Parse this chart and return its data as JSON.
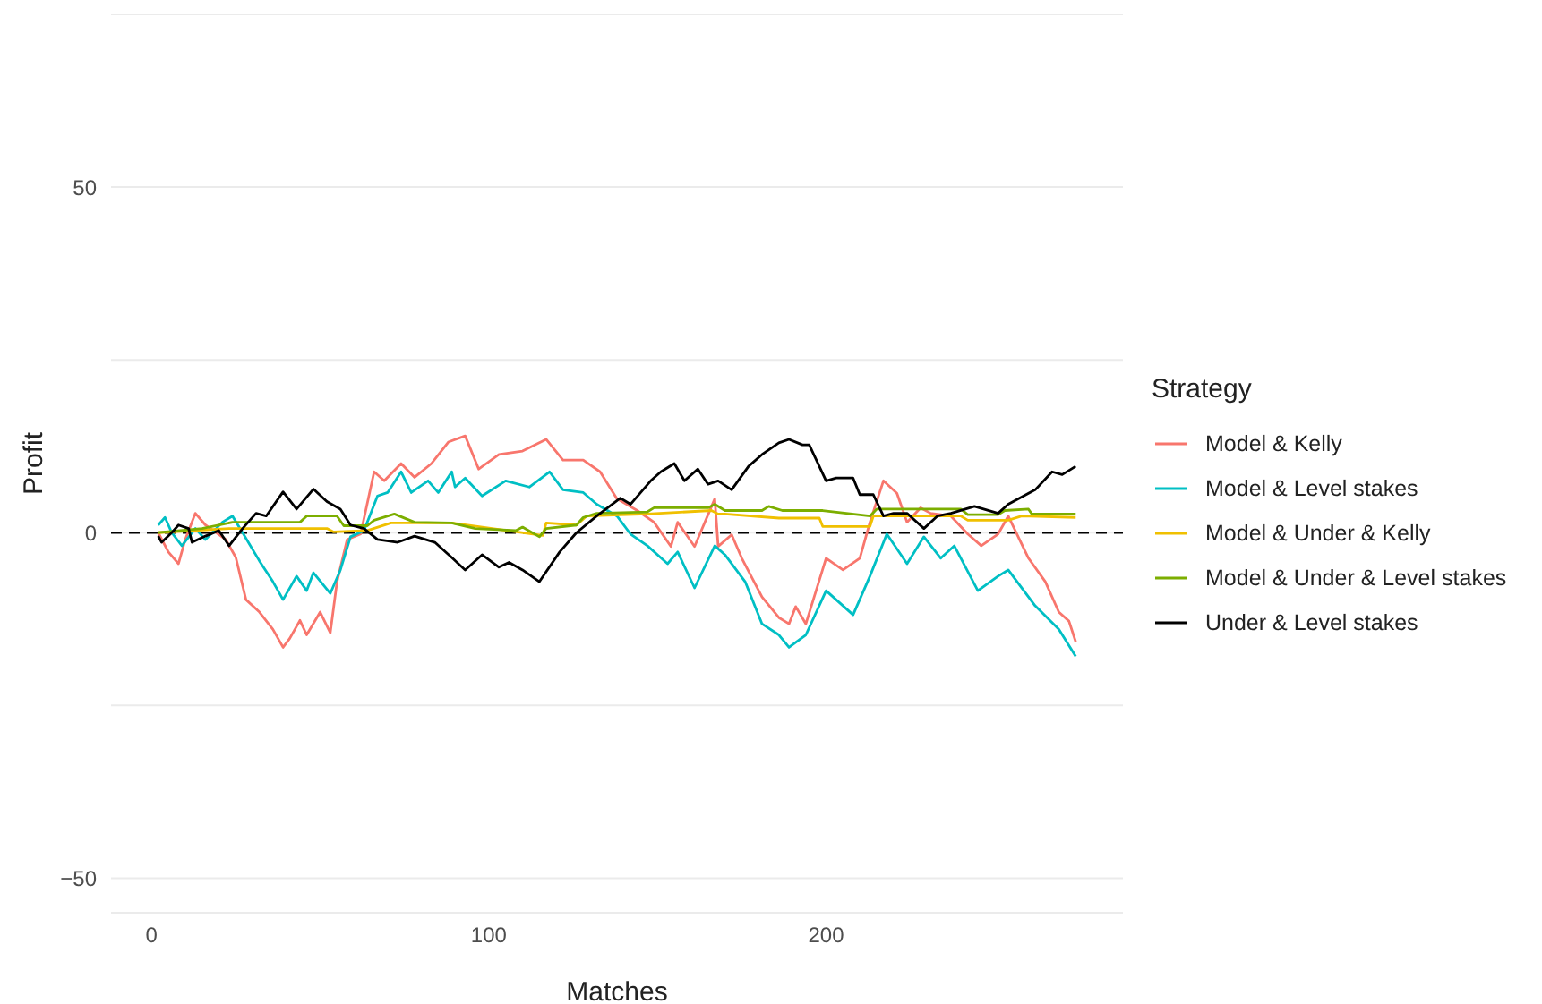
{
  "chart_data": {
    "type": "line",
    "xlabel": "Matches",
    "ylabel": "Profit",
    "legend_title": "Strategy",
    "legend": "right",
    "grid": "y",
    "line_style": "solid",
    "marker": "none",
    "xlim": [
      -12,
      288
    ],
    "xticks": [
      0,
      100,
      200
    ],
    "ylim": [
      -55,
      75
    ],
    "yticks": [
      {
        "value": -50,
        "label": "−50"
      },
      {
        "value": -25,
        "label": null
      },
      0,
      {
        "value": 25,
        "label": null
      },
      50,
      {
        "value": 75,
        "label": null
      }
    ],
    "ref_lines": [
      {
        "axis": "y",
        "value": 0,
        "label": null,
        "color": "#000000",
        "line_style": "dashed"
      }
    ],
    "series": [
      {
        "name": "Model & Kelly",
        "color": "#f8766d",
        "x": [
          2,
          5,
          8,
          10,
          13,
          16,
          22,
          25,
          28,
          32,
          36,
          39,
          41,
          44,
          46,
          50,
          53,
          55,
          58,
          62,
          66,
          69,
          74,
          78,
          83,
          88,
          93,
          97,
          103,
          110,
          117,
          122,
          128,
          133,
          138,
          144,
          149,
          154,
          156,
          161,
          167,
          168,
          172,
          175,
          181,
          186,
          189,
          191,
          194,
          200,
          205,
          210,
          213,
          217,
          221,
          224,
          228,
          231,
          237,
          242,
          246,
          251,
          254,
          260,
          265,
          269,
          272,
          274
        ],
        "values": [
          0,
          -2.8,
          -4.5,
          -1,
          2.8,
          1.1,
          -1,
          -3.6,
          -9.7,
          -11.5,
          -14,
          -16.6,
          -15.3,
          -12.7,
          -14.8,
          -11.5,
          -14.5,
          -7.1,
          -1,
          -0.2,
          8.8,
          7.5,
          10,
          8,
          10,
          13.1,
          14,
          9.2,
          11.3,
          11.8,
          13.5,
          10.5,
          10.5,
          8.8,
          4.9,
          3.2,
          1.5,
          -2,
          1.5,
          -2,
          4.9,
          -2,
          -0.3,
          -3.7,
          -9.3,
          -12.3,
          -13.2,
          -10.7,
          -13.2,
          -3.7,
          -5.4,
          -3.7,
          1.5,
          7.5,
          5.7,
          1.5,
          3.6,
          2.8,
          2.4,
          -0.2,
          -1.9,
          -0.2,
          2.4,
          -3.7,
          -7.1,
          -11.5,
          -12.8,
          -15.8
        ]
      },
      {
        "name": "Model & Level stakes",
        "color": "#00bfc4",
        "x": [
          2,
          4,
          6,
          9,
          13,
          16,
          21,
          24,
          27,
          32,
          36,
          39,
          43,
          46,
          48,
          53,
          56,
          59,
          63,
          67,
          70,
          74,
          77,
          82,
          85,
          89,
          90,
          93,
          98,
          105,
          112,
          118,
          122,
          128,
          132,
          138,
          142,
          147,
          153,
          156,
          161,
          167,
          170,
          176,
          181,
          186,
          189,
          194,
          200,
          208,
          213,
          218,
          224,
          229,
          234,
          238,
          245,
          251,
          254,
          262,
          269,
          274
        ],
        "values": [
          1.1,
          2.2,
          0,
          -1.9,
          0.6,
          -1,
          1.5,
          2.4,
          0,
          -4.1,
          -7.1,
          -9.7,
          -6.3,
          -8.4,
          -5.8,
          -8.8,
          -5.4,
          -0.6,
          0.3,
          5.3,
          5.8,
          8.8,
          5.8,
          7.5,
          5.8,
          8.8,
          6.6,
          7.9,
          5.3,
          7.5,
          6.6,
          8.8,
          6.2,
          5.8,
          4.1,
          2.4,
          -0.2,
          -1.9,
          -4.5,
          -2.8,
          -8,
          -1.9,
          -3.2,
          -7.1,
          -13.2,
          -14.8,
          -16.6,
          -14.8,
          -8.4,
          -11.9,
          -6.3,
          -0.2,
          -4.5,
          -0.6,
          -3.7,
          -1.9,
          -8.4,
          -6.3,
          -5.4,
          -10.6,
          -14,
          -17.9
        ]
      },
      {
        "name": "Model & Under & Kelly",
        "color": "#f0c000",
        "x": [
          2,
          23,
          52,
          54,
          64,
          71,
          89,
          116,
          117,
          126,
          129,
          147,
          166,
          168,
          170,
          186,
          198,
          199,
          213,
          214,
          240,
          242,
          254,
          258,
          274
        ],
        "values": [
          0,
          0.6,
          0.6,
          0.1,
          0.3,
          1.4,
          1.4,
          -0.4,
          1.4,
          1.1,
          2.4,
          2.7,
          3.2,
          2.7,
          2.7,
          2.1,
          2.1,
          0.9,
          0.9,
          2.4,
          2.4,
          1.8,
          1.8,
          2.4,
          2.2
        ]
      },
      {
        "name": "Model & Under & Level stakes",
        "color": "#7cae00",
        "x": [
          2,
          15,
          24,
          44,
          46,
          55,
          57,
          64,
          66,
          72,
          78,
          89,
          96,
          108,
          110,
          115,
          117,
          126,
          128,
          132,
          147,
          149,
          165,
          167,
          170,
          181,
          183,
          187,
          199,
          213,
          215,
          240,
          242,
          251,
          253,
          260,
          261,
          274
        ],
        "values": [
          0,
          0.6,
          1.5,
          1.5,
          2.4,
          2.4,
          1,
          1,
          1.8,
          2.7,
          1.5,
          1.4,
          0.6,
          0.3,
          0.8,
          -0.6,
          0.6,
          1.1,
          2.2,
          2.8,
          3,
          3.6,
          3.6,
          4.1,
          3.2,
          3.2,
          3.8,
          3.2,
          3.2,
          2.4,
          3.4,
          3.4,
          2.6,
          2.6,
          3.2,
          3.4,
          2.7,
          2.7
        ]
      },
      {
        "name": "Under & Level stakes",
        "color": "#000000",
        "x": [
          2,
          3,
          6,
          8,
          11,
          12,
          16,
          20,
          23,
          27,
          31,
          34,
          39,
          43,
          48,
          52,
          56,
          59,
          63,
          67,
          73,
          78,
          84,
          89,
          93,
          98,
          103,
          106,
          110,
          115,
          121,
          126,
          132,
          139,
          142,
          148,
          151,
          155,
          158,
          162,
          165,
          168,
          172,
          177,
          181,
          186,
          189,
          193,
          195,
          200,
          203,
          208,
          210,
          214,
          217,
          220,
          224,
          229,
          233,
          237,
          244,
          251,
          254,
          262,
          267,
          270,
          274
        ],
        "values": [
          -0.5,
          -1.4,
          0,
          1.1,
          0.6,
          -1.4,
          -0.5,
          0.3,
          -1.9,
          0.6,
          2.8,
          2.4,
          5.9,
          3.4,
          6.3,
          4.5,
          3.4,
          1.1,
          0.6,
          -1,
          -1.4,
          -0.5,
          -1.4,
          -3.6,
          -5.4,
          -3.2,
          -5,
          -4.3,
          -5.4,
          -7.1,
          -2.8,
          0,
          2.4,
          5,
          4.1,
          7.5,
          8.8,
          10,
          7.5,
          9.2,
          7,
          7.5,
          6.2,
          9.6,
          11.3,
          13,
          13.5,
          12.7,
          12.7,
          7.5,
          7.9,
          7.9,
          5.5,
          5.5,
          2.4,
          2.8,
          2.8,
          0.6,
          2.4,
          2.8,
          3.8,
          2.8,
          4.1,
          6.2,
          8.8,
          8.4,
          9.6
        ]
      }
    ]
  }
}
